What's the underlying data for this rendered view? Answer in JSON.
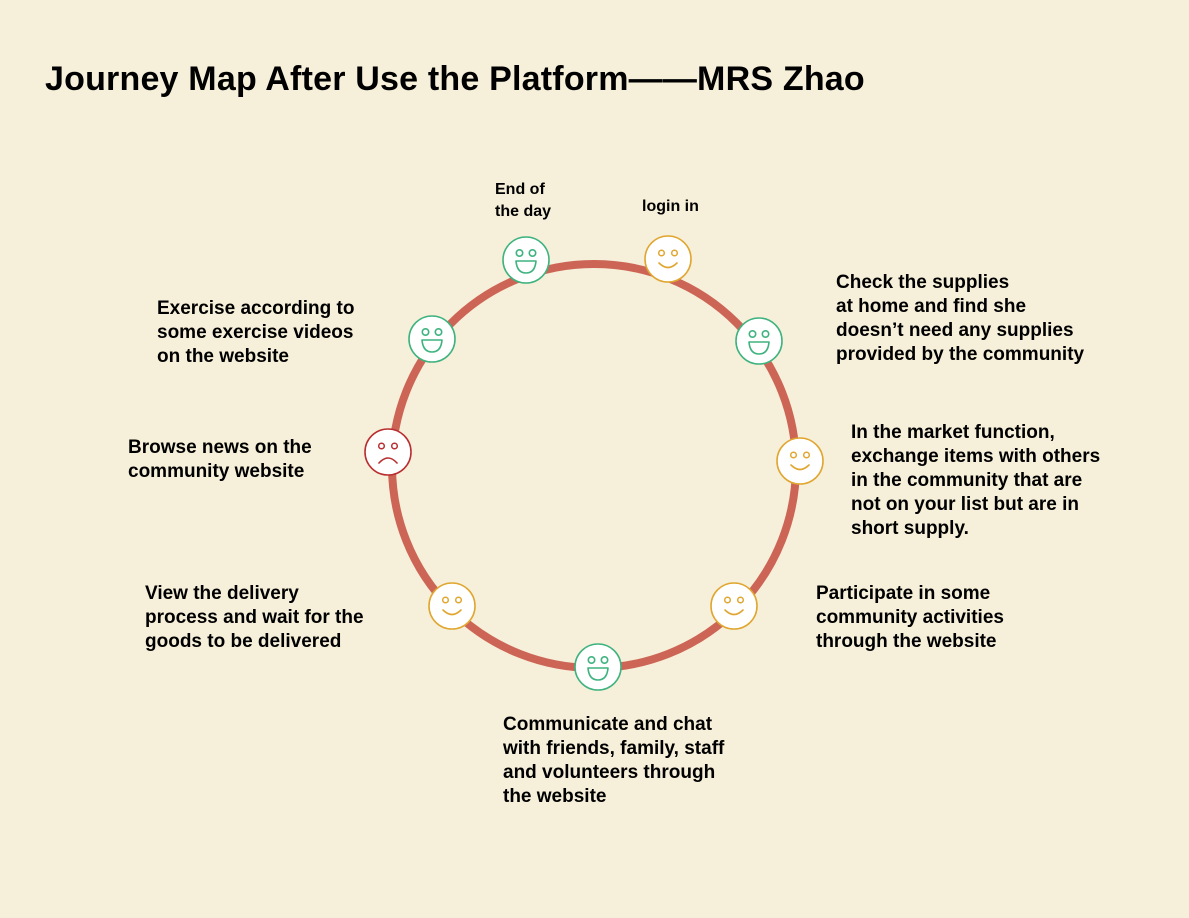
{
  "title": "Journey Map After Use the Platform——MRS Zhao",
  "colors": {
    "background": "#f6efd9",
    "ring": "#cd6556",
    "happy": "#3fb37f",
    "neutral": "#e0a630",
    "sad": "#b92e30",
    "face_fill": "#ffffff"
  },
  "steps": [
    {
      "id": "login",
      "label": "login in",
      "mood": "neutral"
    },
    {
      "id": "check-supplies",
      "label": "Check the supplies\nat home and find she\ndoesn’t need any supplies\nprovided by the community",
      "mood": "happy"
    },
    {
      "id": "market",
      "label": "In the market function,\nexchange items with others\nin the community that are\nnot on your list but are in\nshort supply.",
      "mood": "neutral"
    },
    {
      "id": "activities",
      "label": "Participate in some\ncommunity activities\nthrough the website",
      "mood": "neutral"
    },
    {
      "id": "communicate",
      "label": "Communicate and chat\nwith friends, family, staff\nand volunteers through\nthe website",
      "mood": "happy"
    },
    {
      "id": "delivery",
      "label": "View the delivery\nprocess and wait for the\ngoods to be delivered",
      "mood": "neutral"
    },
    {
      "id": "news",
      "label": "Browse news on the\ncommunity website",
      "mood": "sad"
    },
    {
      "id": "exercise",
      "label": "Exercise according to\nsome exercise videos\non the website",
      "mood": "happy"
    },
    {
      "id": "end-of-day",
      "label": "End of\nthe day",
      "mood": "happy"
    }
  ]
}
